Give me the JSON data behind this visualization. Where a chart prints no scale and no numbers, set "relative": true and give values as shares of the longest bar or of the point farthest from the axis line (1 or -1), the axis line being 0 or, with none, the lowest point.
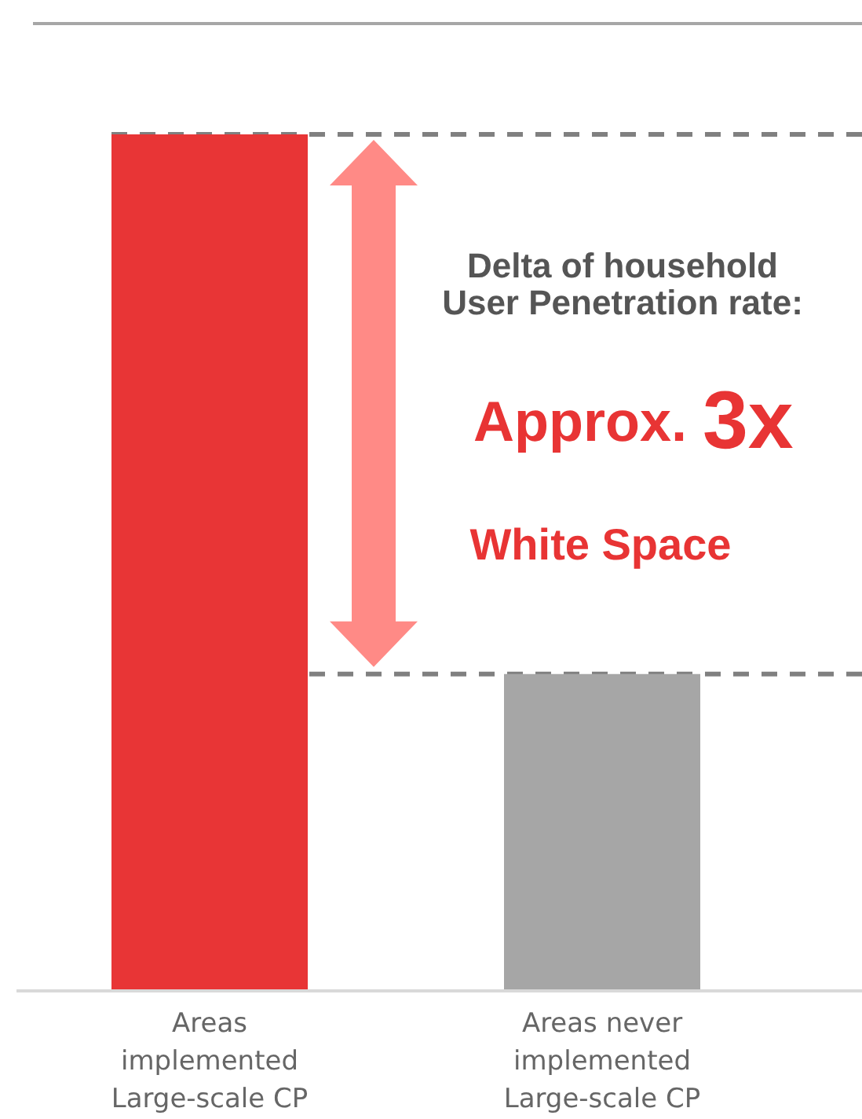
{
  "chart_data": {
    "type": "bar",
    "relative": true,
    "categories": [
      "Areas implemented Large-scale CP",
      "Areas never implemented Large-scale CP"
    ],
    "values": [
      1,
      0.37
    ],
    "colors": [
      "#e83536",
      "#a6a6a6"
    ],
    "ref_lines": [
      {
        "axis": "y",
        "value": 1,
        "color": "#808080",
        "line_style": "dashed"
      },
      {
        "axis": "y",
        "value": 0.37,
        "color": "#808080",
        "line_style": "dashed"
      }
    ],
    "annotations": [
      "Delta of household User Penetration rate:",
      "Approx. 3x",
      "White Space"
    ]
  }
}
